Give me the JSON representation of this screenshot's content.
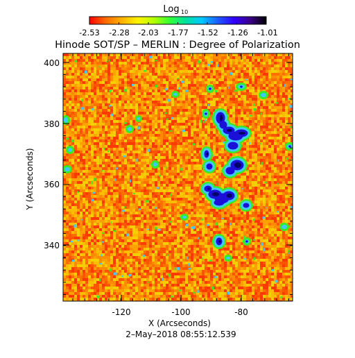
{
  "colorbar": {
    "label_main": "Log",
    "label_sub": "10",
    "ticks": [
      "-2.53",
      "-2.28",
      "-2.03",
      "-1.77",
      "-1.52",
      "-1.26",
      "-1.01"
    ],
    "colors": [
      "#ff0000",
      "#ff6a00",
      "#ffb000",
      "#fff200",
      "#b6ff00",
      "#33ff33",
      "#00e0a0",
      "#00c8ff",
      "#1c5bff",
      "#3000ff",
      "#3a0088",
      "#000000"
    ]
  },
  "title": "Hinode SOT/SP – MERLIN : Degree of Polarization",
  "axes": {
    "xlabel": "X (Arcseconds)",
    "ylabel": "Y (Arcseconds)",
    "xticks": [
      "-120",
      "-100",
      "-80"
    ],
    "yticks": [
      "400",
      "380",
      "360",
      "340"
    ]
  },
  "timestamp": "2–May–2018 08:55:12.539",
  "image": {
    "background_colors": [
      "#ff3a00",
      "#ff5500",
      "#ff7000",
      "#ff8c00",
      "#ffa200",
      "#ffbd00",
      "#f4d000"
    ],
    "colors": {
      "deep": "#1a10d8",
      "dark": "#000066",
      "edge": "#3ec9ff",
      "green": "#38ea2a",
      "yellow": "#e8f000"
    }
  }
}
